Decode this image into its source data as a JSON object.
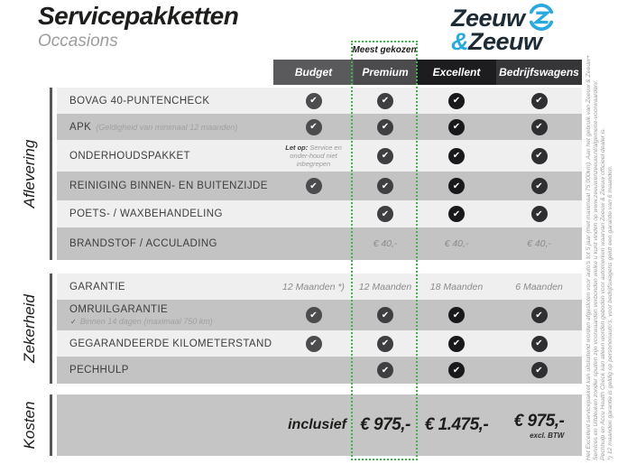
{
  "page": {
    "title": "Servicepakketten",
    "subtitle": "Occasions"
  },
  "logo": {
    "word1": "Zeeuw",
    "amp": "&",
    "word2": "Zeeuw"
  },
  "badge": {
    "label": "Meest gekozen"
  },
  "colors": {
    "highlight_green": "#3cb54a",
    "logo_blue": "#2aa9e0",
    "row_light": "#efefef",
    "row_dark": "#c3c3c3",
    "kosten_band": "#c5c5c5",
    "header_budget": "#5a5a5c",
    "header_premium": "#4b4b4e",
    "header_excellent": "#1d1d1f",
    "header_bedrijfswagens": "#363639"
  },
  "columns": [
    {
      "id": "budget",
      "label": "Budget"
    },
    {
      "id": "premium",
      "label": "Premium",
      "highlight": true
    },
    {
      "id": "excellent",
      "label": "Excellent"
    },
    {
      "id": "bedrijfswagens",
      "label": "Bedrijfswagens"
    }
  ],
  "sections": [
    {
      "label": "Aflevering",
      "rows": [
        {
          "label": "BOVAG 40-PUNTENCHECK",
          "cells": [
            "check",
            "check",
            "check",
            "check"
          ]
        },
        {
          "label": "APK",
          "sublabel": "(Geldigheid van minimaal 12 maanden)",
          "cells": [
            "check",
            "check",
            "check",
            "check"
          ]
        },
        {
          "label": "ONDERHOUDSPAKKET",
          "note_bold": "Let op:",
          "note_text": "Service en onder-houd niet inbegrepen",
          "cells": [
            "",
            "check",
            "check",
            "check"
          ]
        },
        {
          "label": "REINIGING BINNEN- EN BUITENZIJDE",
          "cells": [
            "check",
            "check",
            "check",
            "check"
          ]
        },
        {
          "label": "POETS- / WAXBEHANDELING",
          "cells": [
            "",
            "check",
            "check",
            "check"
          ]
        },
        {
          "label": "BRANDSTOF / ACCULADING",
          "cells": [
            "",
            "€ 40,-",
            "€ 40,-",
            "€ 40,-"
          ]
        }
      ]
    },
    {
      "label": "Zekerheid",
      "rows": [
        {
          "label": "GARANTIE",
          "cells": [
            "12 Maanden *)",
            "12 Maanden",
            "18 Maanden",
            "6 Maanden"
          ]
        },
        {
          "label": "OMRUILGARANTIE",
          "subcheck": "✓",
          "sublabel": "Binnen 14 dagen (maximaal 750 km)",
          "cells": [
            "check",
            "check",
            "check",
            "check"
          ]
        },
        {
          "label": "GEGARANDEERDE KILOMETERSTAND",
          "cells": [
            "check",
            "check",
            "check",
            "check"
          ]
        },
        {
          "label": "PECHHULP",
          "cells": [
            "",
            "check",
            "check",
            "check"
          ]
        }
      ]
    },
    {
      "label": "Kosten",
      "inclusief": "inclusief",
      "prices": [
        "€ 975,-",
        "€ 1.475,-",
        "€ 975,-"
      ],
      "price_note": "excl. BTW"
    }
  ],
  "footnote": {
    "lines": [
      "Het Excellent servicepakket kan uitsluitend worden afgesloten voor auto's tot 5 jaar (met maximaal 75.000km). Aan het gebruik van Zeeuw & Zeeuw+",
      "Services en Uitdeuken zonder spuiten zijn voorwaarden verbonden welke u kunt vinden op www.zeeuwenzeeuw.nl/algemene-voorwaarden/.",
      "Pechhulp en Accu Health Check kan alleen worden geboden voor automerken waarvan Zeeuw & Zeeuw officieel dealer is.",
      "*) 12 maanden garantie is geldig op personenauto's, voor bedrijfswagens geldt een garantie van 6 maanden."
    ]
  }
}
